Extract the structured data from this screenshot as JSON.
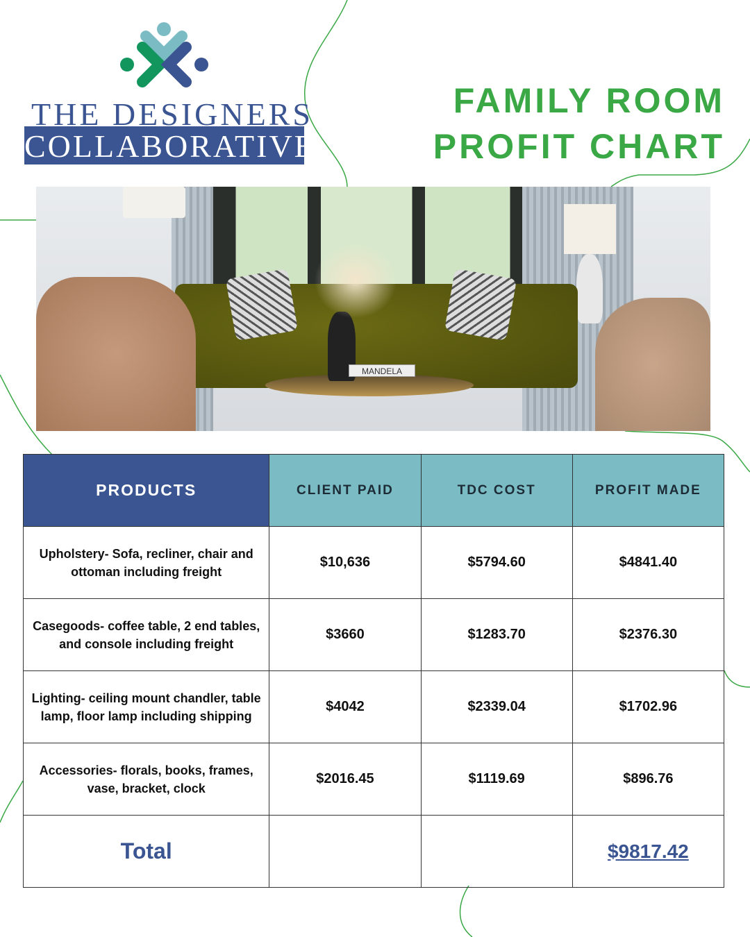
{
  "brand": {
    "line1": "THE DESIGNERS",
    "line2": "COLLABORATIVE"
  },
  "title": {
    "line1": "FAMILY ROOM",
    "line2": "PROFIT CHART"
  },
  "photo": {
    "book_title": "MANDELA"
  },
  "colors": {
    "green": "#3aa845",
    "blue": "#3a5591",
    "teal": "#7bbcc4"
  },
  "table": {
    "headers": [
      "PRODUCTS",
      "CLIENT PAID",
      "TDC COST",
      "PROFIT MADE"
    ],
    "rows": [
      {
        "product": "Upholstery- Sofa, recliner, chair and ottoman including freight",
        "client_paid": "$10,636",
        "tdc_cost": "$5794.60",
        "profit": "$4841.40"
      },
      {
        "product": "Casegoods- coffee table, 2 end tables, and console  including freight",
        "client_paid": "$3660",
        "tdc_cost": "$1283.70",
        "profit": "$2376.30"
      },
      {
        "product": "Lighting- ceiling mount chandler, table lamp, floor lamp  including shipping",
        "client_paid": "$4042",
        "tdc_cost": "$2339.04",
        "profit": "$1702.96"
      },
      {
        "product": "Accessories- florals, books, frames, vase, bracket, clock",
        "client_paid": "$2016.45",
        "tdc_cost": "$1119.69",
        "profit": "$896.76"
      }
    ],
    "total": {
      "label": "Total",
      "client_paid": "",
      "tdc_cost": "",
      "profit": "$9817.42"
    }
  }
}
